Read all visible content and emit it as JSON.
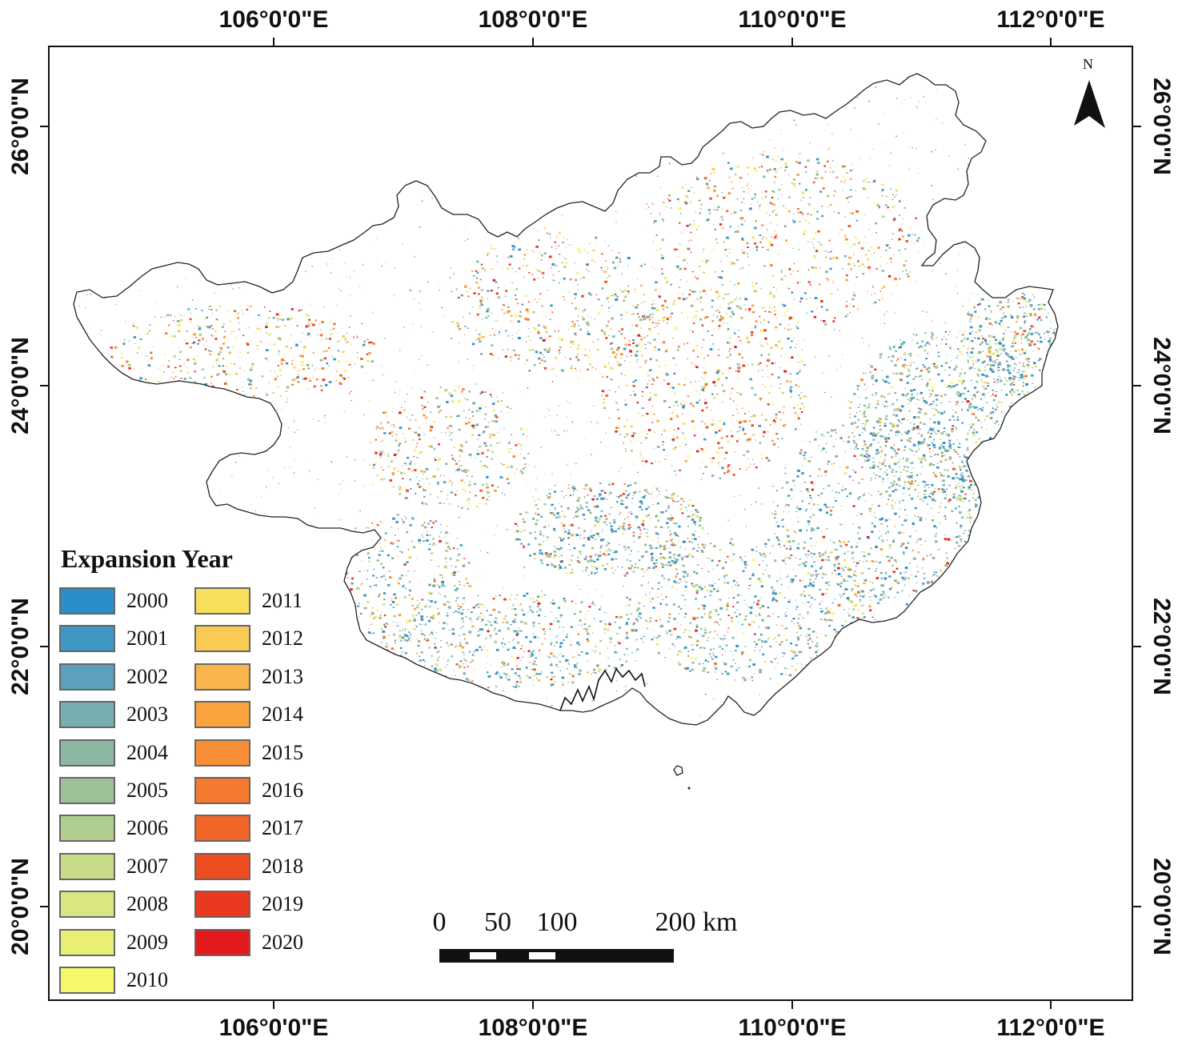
{
  "map": {
    "longitude_labels": [
      "106°0'0\"E",
      "108°0'0\"E",
      "110°0'0\"E",
      "112°0'0\"E"
    ],
    "latitude_labels": [
      "26°0'0\"N",
      "24°0'0\"N",
      "22°0'0\"N",
      "20°0'0\"N"
    ],
    "north_arrow_label": "N",
    "frame_color": "#111111",
    "boundary_color": "#222222"
  },
  "legend": {
    "title": "Expansion Year",
    "items": [
      {
        "label": "2000",
        "color": "#2a8fc9"
      },
      {
        "label": "2001",
        "color": "#3e96c4"
      },
      {
        "label": "2002",
        "color": "#5ba1bb"
      },
      {
        "label": "2003",
        "color": "#79aeb0"
      },
      {
        "label": "2004",
        "color": "#8cb7a2"
      },
      {
        "label": "2005",
        "color": "#9cc196"
      },
      {
        "label": "2006",
        "color": "#b0cf8f"
      },
      {
        "label": "2007",
        "color": "#c8dc88"
      },
      {
        "label": "2008",
        "color": "#dbe683"
      },
      {
        "label": "2009",
        "color": "#e9ee75"
      },
      {
        "label": "2010",
        "color": "#f6f86a"
      },
      {
        "label": "2011",
        "color": "#f8e05c"
      },
      {
        "label": "2012",
        "color": "#f9cb55"
      },
      {
        "label": "2013",
        "color": "#f9b54c"
      },
      {
        "label": "2014",
        "color": "#f9a43f"
      },
      {
        "label": "2015",
        "color": "#f88e36"
      },
      {
        "label": "2016",
        "color": "#f57a2f"
      },
      {
        "label": "2017",
        "color": "#f26529"
      },
      {
        "label": "2018",
        "color": "#ee4d22"
      },
      {
        "label": "2019",
        "color": "#ea391e"
      },
      {
        "label": "2020",
        "color": "#e41a1c"
      }
    ]
  },
  "scale_bar": {
    "labels": [
      "0",
      "50",
      "100",
      "200 km"
    ]
  }
}
